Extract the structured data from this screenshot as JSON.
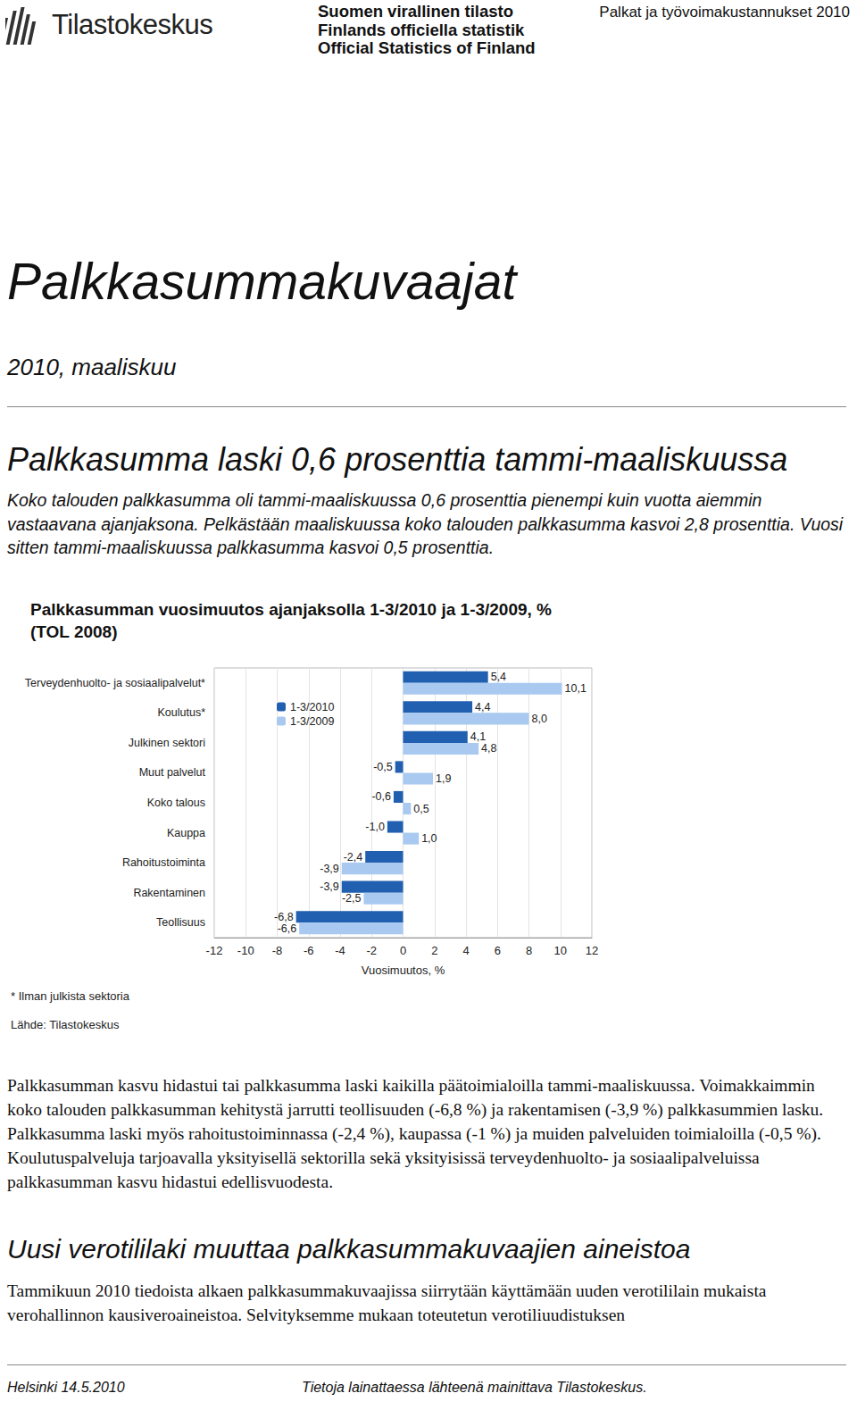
{
  "header": {
    "organization": "Tilastokeskus",
    "official_statistics": [
      "Suomen virallinen tilasto",
      "Finlands officiella statistik",
      "Official Statistics of Finland"
    ],
    "publication": "Palkat ja työvoimakustannukset 2010"
  },
  "title": "Palkkasummakuvaajat",
  "period": "2010, maaliskuu",
  "heading": "Palkkasumma laski 0,6 prosenttia tammi-maaliskuussa",
  "intro": "Koko talouden palkkasumma oli tammi-maaliskuussa 0,6 prosenttia pienempi kuin vuotta aiemmin vastaavana ajanjaksona. Pelkästään maaliskuussa koko talouden palkkasumma kasvoi 2,8 prosenttia. Vuosi sitten tammi-maaliskuussa palkkasumma kasvoi 0,5 prosenttia.",
  "chart_data": {
    "type": "bar",
    "orientation": "horizontal",
    "title": "Palkkasumman vuosimuutos ajanjaksolla 1-3/2010 ja 1-3/2009, %",
    "subtitle": "(TOL 2008)",
    "x_label": "Vuosimuutos, %",
    "categories": [
      "Terveydenhuolto- ja sosiaalipalvelut*",
      "Koulutus*",
      "Julkinen sektori",
      "Muut palvelut",
      "Koko talous",
      "Kauppa",
      "Rahoitustoiminta",
      "Rakentaminen",
      "Teollisuus"
    ],
    "series": [
      {
        "name": "1-3/2010",
        "color": "#2160b0",
        "values": [
          5.4,
          4.4,
          4.1,
          -0.5,
          -0.6,
          -1.0,
          -2.4,
          -3.9,
          -6.8
        ],
        "value_labels": [
          "5,4",
          "4,4",
          "4,1",
          "-0,5",
          "-0,6",
          "-1,0",
          "-2,4",
          "-3,9",
          "-6,8"
        ]
      },
      {
        "name": "1-3/2009",
        "color": "#a9c9f0",
        "values": [
          10.1,
          8.0,
          4.8,
          1.9,
          0.5,
          1.0,
          -3.9,
          -2.5,
          -6.6
        ],
        "value_labels": [
          "10,1",
          "8,0",
          "4,8",
          "1,9",
          "0,5",
          "1,0",
          "-3,9",
          "-2,5",
          "-6,6"
        ]
      }
    ],
    "xlim": [
      -12,
      12
    ],
    "xticks": [
      -12,
      -10,
      -8,
      -6,
      -4,
      -2,
      0,
      2,
      4,
      6,
      8,
      10,
      12
    ],
    "grid": true,
    "legend": "upper left",
    "data_labels": true,
    "annotations": [
      "* Ilman julkista sektoria",
      "Lähde: Tilastokeskus"
    ]
  },
  "body": "Palkkasumman kasvu hidastui tai palkkasumma laski kaikilla päätoimialoilla tammi-maaliskuussa. Voimakkaimmin koko talouden palkkasumman kehitystä jarrutti teollisuuden (-6,8 %) ja rakentamisen (-3,9 %) palkkasummien lasku. Palkkasumma laski myös rahoitustoiminnassa (-2,4 %), kaupassa (-1 %) ja muiden palveluiden toimialoilla (-0,5 %). Koulutuspalveluja tarjoavalla yksityisellä sektorilla sekä yksityisissä terveydenhuolto- ja sosiaalipalveluissa palkkasumman kasvu hidastui edellisvuodesta.",
  "heading2": "Uusi verotililaki muuttaa palkkasummakuvaajien aineistoa",
  "body2": "Tammikuun 2010 tiedoista alkaen palkkasummakuvaajissa siirrytään käyttämään uuden verotililain mukaista verohallinnon kausiveroaineistoa. Selvityksemme mukaan toteutetun verotiliuudistuksen",
  "footer": {
    "place_date": "Helsinki 14.5.2010",
    "note": "Tietoja lainattaessa lähteenä mainittava Tilastokeskus."
  }
}
